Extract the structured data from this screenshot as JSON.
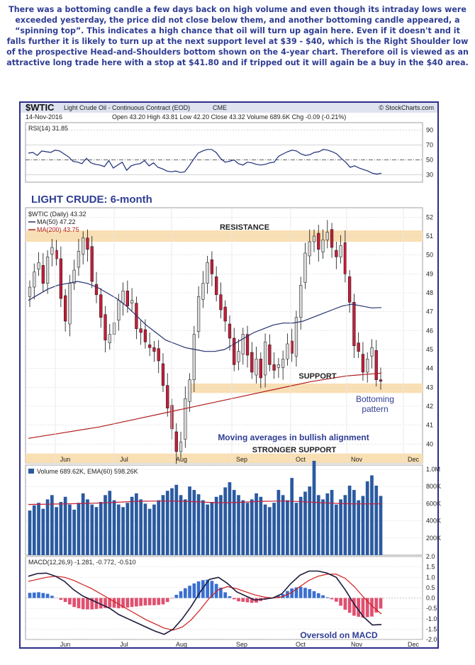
{
  "commentary": "There was a bottoming candle a few days back on high volume and even though its intraday lows were exceeded yesterday, the price did not close below them, and another bottoming candle appeared, a “spinning top”. This indicates a high chance that oil will turn up again here. Even if it doesn't and it falls further it is likely to turn up at the next support level at $39 - $40, which is the Right Shoulder low of the prospective Head-and-Shoulders bottom shown on the 4-year chart. Therefore oil is viewed as an attractive long trade here with a stop at $41.80 and if tripped out it will again be a buy in the $40 area.",
  "header": {
    "symbol": "$WTIC",
    "name": "Light Crude Oil - Continuous Contract (EOD)",
    "exchange": "CME",
    "copyright": "© StockCharts.com",
    "date": "14-Nov-2016",
    "quote": "Open 43.20  High 43.81  Low 42.20  Close 43.32  Volume 689.6K  Chg -0.09 (-0.21%)"
  },
  "colors": {
    "frame": "#2d2d8a",
    "candle_up": "#d8d8d8",
    "candle_down": "#c41e3a",
    "ma50": "#24306e",
    "ma200": "#b01a1a",
    "band": "#f9dfb4",
    "volume": "#2a5aa0",
    "macd_line": "#1a1a3c",
    "signal_line": "#d01b1b",
    "hist_pos": "#3a6fd0",
    "hist_neg": "#e05070",
    "annotation": "#2f3d93",
    "rsi_line": "#1c2c78"
  },
  "chart_data": [
    {
      "type": "line",
      "panel": "rsi",
      "legend": "RSI(14) 31.85",
      "ylim": [
        20,
        100
      ],
      "yticks": [
        90,
        70,
        50,
        30
      ],
      "grid": true,
      "series": [
        {
          "name": "RSI(14)",
          "values": [
            59,
            60,
            56,
            62,
            61,
            60,
            63,
            62,
            58,
            54,
            48,
            47,
            45,
            52,
            46,
            44,
            43,
            41,
            49,
            39,
            43,
            47,
            36,
            42,
            44,
            45,
            49,
            42,
            46,
            40,
            38,
            35,
            34,
            35,
            33,
            34,
            42,
            51,
            59,
            62,
            64,
            64,
            60,
            52,
            47,
            48,
            50,
            45,
            43,
            47,
            46,
            44,
            43,
            44,
            46,
            47,
            55,
            58,
            61,
            63,
            62,
            58,
            56,
            57,
            60,
            61,
            64,
            63,
            61,
            58,
            52,
            47,
            40,
            42,
            39,
            37,
            35,
            32,
            31,
            32
          ]
        }
      ]
    },
    {
      "type": "candlestick",
      "panel": "price",
      "title": "LIGHT CRUDE: 6-month",
      "legend": [
        "$WTIC (Daily) 43.32",
        "MA(50) 47.22",
        "MA(200) 43.75"
      ],
      "months": [
        "Jun",
        "Jul",
        "Aug",
        "Sep",
        "Oct",
        "Nov",
        "Dec"
      ],
      "ylim": [
        39,
        52.5
      ],
      "yticks": [
        52,
        51,
        50,
        49,
        48,
        47,
        46,
        45,
        44,
        43,
        42,
        41,
        40
      ],
      "grid": true,
      "closes": [
        48.3,
        49.1,
        49.6,
        48.5,
        49.9,
        50.4,
        49.8,
        47.7,
        46.5,
        48.5,
        49.2,
        50.2,
        50.9,
        50.3,
        48.6,
        47.9,
        46.7,
        45.5,
        45.8,
        46.4,
        47.6,
        48.1,
        47.3,
        47.6,
        46.1,
        45.9,
        45.4,
        45.1,
        44.9,
        44.4,
        43.1,
        41.9,
        40.8,
        39.6,
        40.1,
        42.4,
        43.4,
        45.8,
        47.8,
        48.5,
        49.6,
        49.0,
        47.9,
        47.1,
        46.5,
        45.6,
        44.2,
        44.9,
        45.8,
        44.7,
        43.8,
        44.5,
        43.5,
        45.4,
        44.2,
        43.9,
        44.2,
        44.5,
        45.3,
        44.8,
        46.7,
        48.4,
        50.1,
        50.7,
        51.0,
        50.3,
        50.8,
        51.2,
        50.4,
        49.9,
        50.5,
        49.0,
        47.5,
        45.2,
        44.9,
        43.8,
        44.5,
        45.1,
        43.4,
        43.32
      ],
      "ma50": [
        47.6,
        47.9,
        48.2,
        48.4,
        48.5,
        48.6,
        48.5,
        48.3,
        48.0,
        47.7,
        47.3,
        46.8,
        46.3,
        45.9,
        45.5,
        45.3,
        45.1,
        45.0,
        44.9,
        44.9,
        45.0,
        45.3,
        45.6,
        45.9,
        46.1,
        46.3,
        46.4,
        46.4,
        46.5,
        46.7,
        46.9,
        47.1,
        47.3,
        47.4,
        47.3,
        47.2,
        47.22
      ],
      "ma200": [
        40.3,
        40.6,
        40.9,
        41.3,
        41.7,
        42.1,
        42.5,
        42.9,
        43.3,
        43.6,
        43.75
      ],
      "annotations": {
        "resistance": "RESISTANCE",
        "support": "SUPPORT",
        "stronger_support": "STRONGER SUPPORT",
        "bottoming_1": "Bottoming",
        "bottoming_2": "pattern",
        "ma_note": "Moving averages in bullish alignment"
      }
    },
    {
      "type": "bar",
      "panel": "volume",
      "legend": "Volume 689.62K, EMA(60) 598.26K",
      "ylim": [
        0,
        1050000
      ],
      "yticks": [
        "1.0M",
        "800K",
        "600K",
        "400K",
        "200K"
      ],
      "values": [
        520,
        580,
        610,
        540,
        650,
        700,
        560,
        620,
        680,
        590,
        530,
        610,
        720,
        650,
        590,
        560,
        620,
        700,
        750,
        640,
        590,
        560,
        610,
        680,
        720,
        650,
        600,
        540,
        590,
        640,
        700,
        750,
        780,
        820,
        700,
        650,
        800,
        760,
        710,
        640,
        590,
        620,
        680,
        700,
        790,
        850,
        760,
        700,
        640,
        610,
        650,
        720,
        680,
        590,
        560,
        610,
        760,
        700,
        640,
        900,
        610,
        680,
        740,
        800,
        1100,
        700,
        650,
        720,
        760,
        590,
        650,
        700,
        810,
        760,
        640,
        690,
        860,
        930,
        810,
        690
      ],
      "ema": [
        590,
        592,
        594,
        596,
        598,
        600,
        603,
        606,
        610,
        615,
        620,
        625,
        628,
        630,
        630,
        630,
        628,
        625,
        620,
        615,
        612,
        612,
        615,
        620,
        625,
        628,
        630,
        630,
        627,
        622,
        615,
        610,
        605,
        600,
        598,
        598,
        598,
        598
      ]
    },
    {
      "type": "line",
      "panel": "macd",
      "legend": "MACD(12,26,9) -1.281, -0.772, -0.510",
      "ylim": [
        -2.0,
        2.0
      ],
      "yticks": [
        "2.0",
        "1.5",
        "1.0",
        "0.5",
        "0.0",
        "-0.5",
        "-1.0",
        "-1.5",
        "-2.0"
      ],
      "series": [
        {
          "name": "MACD(12,26,9)",
          "values": [
            1.05,
            1.18,
            1.2,
            1.05,
            0.8,
            0.4,
            0.1,
            -0.1,
            -0.3,
            -0.5,
            -0.8,
            -1.0,
            -1.2,
            -1.4,
            -1.6,
            -1.75,
            -1.5,
            -1.0,
            -0.4,
            0.3,
            0.9,
            1.0,
            0.7,
            0.3,
            0.1,
            -0.1,
            -0.05,
            0.0,
            0.2,
            0.7,
            1.1,
            1.3,
            1.3,
            1.2,
            1.0,
            0.4,
            -0.3,
            -0.9,
            -1.3,
            -1.28
          ]
        },
        {
          "name": "Signal",
          "values": [
            0.8,
            0.9,
            1.0,
            1.05,
            1.0,
            0.85,
            0.65,
            0.45,
            0.2,
            -0.05,
            -0.3,
            -0.55,
            -0.8,
            -1.05,
            -1.25,
            -1.45,
            -1.55,
            -1.4,
            -1.05,
            -0.55,
            0.0,
            0.4,
            0.55,
            0.45,
            0.3,
            0.15,
            0.05,
            0.0,
            0.05,
            0.25,
            0.55,
            0.85,
            1.05,
            1.15,
            1.15,
            0.95,
            0.55,
            0.05,
            -0.4,
            -0.77
          ]
        }
      ],
      "annotation": "Oversold on MACD"
    }
  ]
}
